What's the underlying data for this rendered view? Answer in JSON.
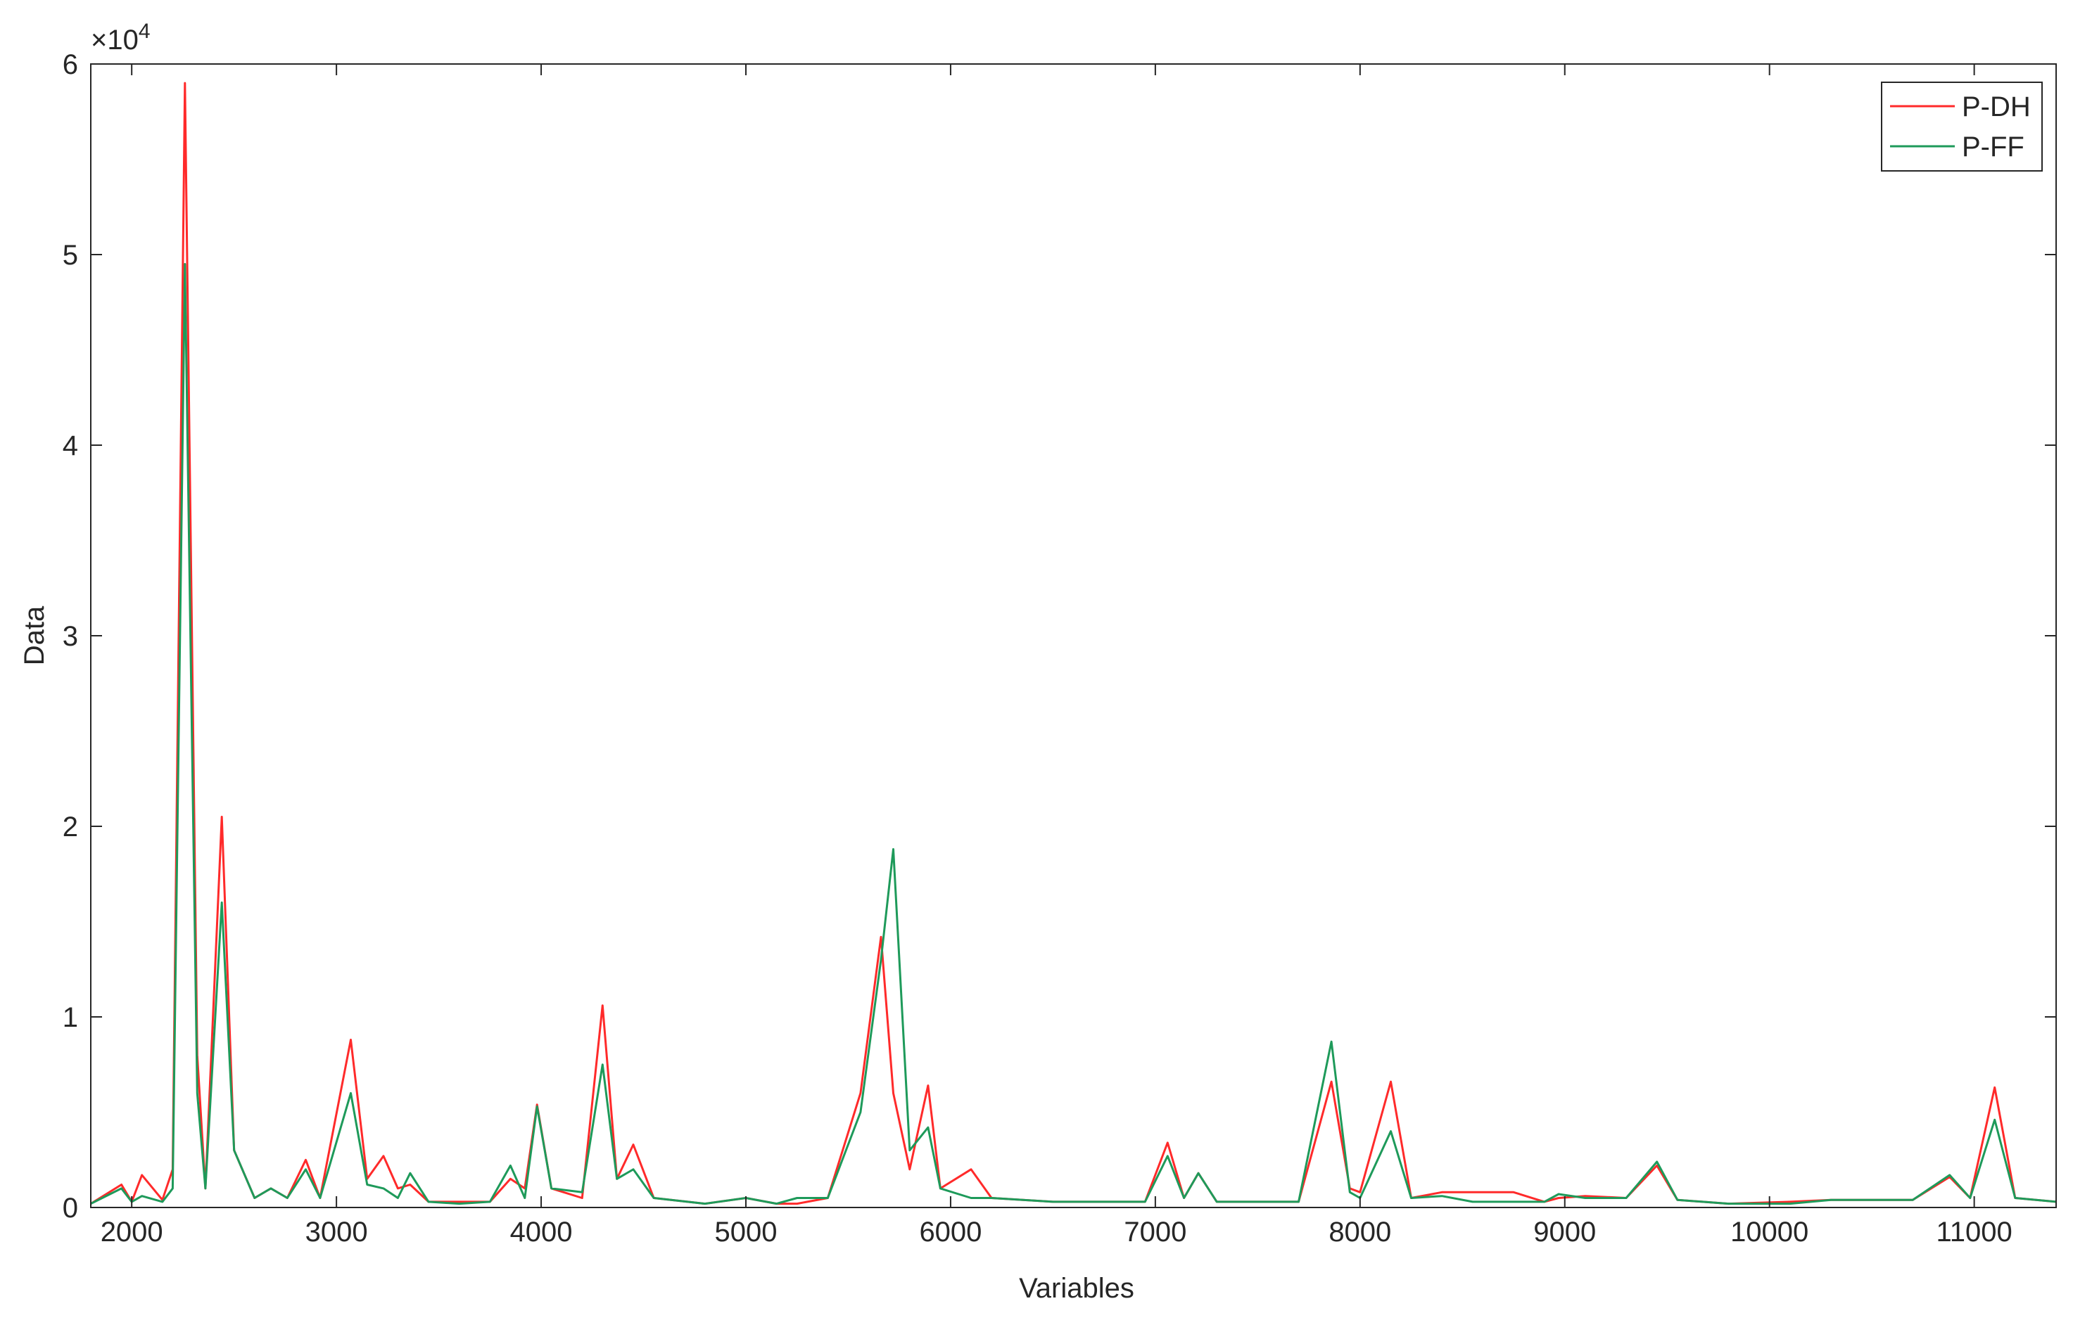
{
  "chart_data": {
    "type": "line",
    "xlabel": "Variables",
    "ylabel": "Data",
    "y_multiplier": {
      "base": "×10",
      "exponent": "4"
    },
    "xlim": [
      1800,
      11400
    ],
    "xticks": [
      2000,
      3000,
      4000,
      5000,
      6000,
      7000,
      8000,
      9000,
      10000,
      11000
    ],
    "ylim": [
      0,
      6
    ],
    "yticks": [
      0,
      1,
      2,
      3,
      4,
      5,
      6
    ],
    "legend": "top-right",
    "x": [
      1800,
      1950,
      2000,
      2050,
      2150,
      2200,
      2260,
      2320,
      2360,
      2440,
      2500,
      2600,
      2680,
      2760,
      2850,
      2920,
      3070,
      3150,
      3230,
      3300,
      3360,
      3450,
      3600,
      3750,
      3850,
      3920,
      3980,
      4050,
      4200,
      4300,
      4370,
      4450,
      4550,
      4800,
      5000,
      5150,
      5250,
      5400,
      5560,
      5660,
      5720,
      5800,
      5890,
      5950,
      6100,
      6200,
      6500,
      6800,
      6950,
      7060,
      7140,
      7210,
      7300,
      7700,
      7860,
      7950,
      8000,
      8150,
      8250,
      8400,
      8550,
      8750,
      8900,
      8970,
      9100,
      9300,
      9450,
      9550,
      9800,
      10100,
      10300,
      10700,
      10880,
      10980,
      11100,
      11200,
      11400
    ],
    "series": [
      {
        "name": "P-DH",
        "color": "#ff2a2a",
        "values": [
          0.02,
          0.12,
          0.03,
          0.17,
          0.04,
          0.2,
          5.9,
          0.8,
          0.1,
          2.05,
          0.3,
          0.05,
          0.1,
          0.05,
          0.25,
          0.05,
          0.88,
          0.15,
          0.27,
          0.1,
          0.12,
          0.03,
          0.03,
          0.03,
          0.15,
          0.1,
          0.54,
          0.1,
          0.05,
          1.06,
          0.15,
          0.33,
          0.05,
          0.02,
          0.05,
          0.02,
          0.02,
          0.05,
          0.6,
          1.42,
          0.6,
          0.2,
          0.64,
          0.1,
          0.2,
          0.05,
          0.03,
          0.03,
          0.03,
          0.34,
          0.05,
          0.18,
          0.03,
          0.03,
          0.66,
          0.1,
          0.08,
          0.66,
          0.05,
          0.08,
          0.08,
          0.08,
          0.03,
          0.05,
          0.06,
          0.05,
          0.22,
          0.04,
          0.02,
          0.03,
          0.04,
          0.04,
          0.16,
          0.05,
          0.63,
          0.05,
          0.03
        ]
      },
      {
        "name": "P-FF",
        "color": "#1e9a5a",
        "values": [
          0.02,
          0.1,
          0.03,
          0.06,
          0.03,
          0.1,
          4.95,
          0.6,
          0.1,
          1.6,
          0.3,
          0.05,
          0.1,
          0.05,
          0.2,
          0.05,
          0.6,
          0.12,
          0.1,
          0.05,
          0.18,
          0.03,
          0.02,
          0.03,
          0.22,
          0.05,
          0.53,
          0.1,
          0.08,
          0.75,
          0.15,
          0.2,
          0.05,
          0.02,
          0.05,
          0.02,
          0.05,
          0.05,
          0.5,
          1.3,
          1.88,
          0.3,
          0.42,
          0.1,
          0.05,
          0.05,
          0.03,
          0.03,
          0.03,
          0.27,
          0.05,
          0.18,
          0.03,
          0.03,
          0.87,
          0.08,
          0.05,
          0.4,
          0.05,
          0.06,
          0.03,
          0.03,
          0.03,
          0.07,
          0.05,
          0.05,
          0.24,
          0.04,
          0.02,
          0.02,
          0.04,
          0.04,
          0.17,
          0.05,
          0.46,
          0.05,
          0.03
        ]
      }
    ]
  }
}
